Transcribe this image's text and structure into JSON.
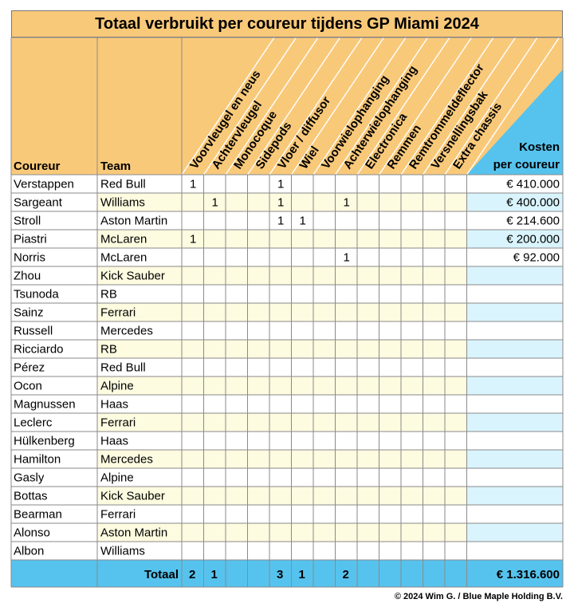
{
  "title": "Totaal verbruikt per coureur tijdens GP Miami 2024",
  "footer": "© 2024 Wim G. / Blue Maple Holding B.V.",
  "colors": {
    "header_orange": "#f9c97a",
    "row_yellow": "#fdfbe0",
    "cost_blue": "#56c3ee",
    "cost_light": "#d9f4fc",
    "grid": "#8a8a8a"
  },
  "chart_data": {
    "type": "table",
    "columns": {
      "driver": "Coureur",
      "team": "Team",
      "parts": [
        "Voorvleugel en neus",
        "Achtervleugel",
        "Monocoque",
        "Sidepods",
        "Vloer / diffusor",
        "Wiel",
        "Voorwielophanging",
        "Achterwielophanging",
        "Electronica",
        "Remmen",
        "Remtrommeldeflector",
        "Versnellingsbak",
        "Extra chassis"
      ],
      "cost_line1": "Kosten",
      "cost_line2": "per coureur"
    },
    "rows": [
      {
        "driver": "Verstappen",
        "team": "Red Bull",
        "parts": [
          "1",
          "",
          "",
          "",
          "1",
          "",
          "",
          "",
          "",
          "",
          "",
          "",
          ""
        ],
        "cost": "€ 410.000"
      },
      {
        "driver": "Sargeant",
        "team": "Williams",
        "parts": [
          "",
          "1",
          "",
          "",
          "1",
          "",
          "",
          "1",
          "",
          "",
          "",
          "",
          ""
        ],
        "cost": "€ 400.000"
      },
      {
        "driver": "Stroll",
        "team": "Aston Martin",
        "parts": [
          "",
          "",
          "",
          "",
          "1",
          "1",
          "",
          "",
          "",
          "",
          "",
          "",
          ""
        ],
        "cost": "€ 214.600"
      },
      {
        "driver": "Piastri",
        "team": "McLaren",
        "parts": [
          "1",
          "",
          "",
          "",
          "",
          "",
          "",
          "",
          "",
          "",
          "",
          "",
          ""
        ],
        "cost": "€ 200.000"
      },
      {
        "driver": "Norris",
        "team": "McLaren",
        "parts": [
          "",
          "",
          "",
          "",
          "",
          "",
          "",
          "1",
          "",
          "",
          "",
          "",
          ""
        ],
        "cost": "€ 92.000"
      },
      {
        "driver": "Zhou",
        "team": "Kick Sauber",
        "parts": [
          "",
          "",
          "",
          "",
          "",
          "",
          "",
          "",
          "",
          "",
          "",
          "",
          ""
        ],
        "cost": ""
      },
      {
        "driver": "Tsunoda",
        "team": "RB",
        "parts": [
          "",
          "",
          "",
          "",
          "",
          "",
          "",
          "",
          "",
          "",
          "",
          "",
          ""
        ],
        "cost": ""
      },
      {
        "driver": "Sainz",
        "team": "Ferrari",
        "parts": [
          "",
          "",
          "",
          "",
          "",
          "",
          "",
          "",
          "",
          "",
          "",
          "",
          ""
        ],
        "cost": ""
      },
      {
        "driver": "Russell",
        "team": "Mercedes",
        "parts": [
          "",
          "",
          "",
          "",
          "",
          "",
          "",
          "",
          "",
          "",
          "",
          "",
          ""
        ],
        "cost": ""
      },
      {
        "driver": "Ricciardo",
        "team": "RB",
        "parts": [
          "",
          "",
          "",
          "",
          "",
          "",
          "",
          "",
          "",
          "",
          "",
          "",
          ""
        ],
        "cost": ""
      },
      {
        "driver": "Pérez",
        "team": "Red Bull",
        "parts": [
          "",
          "",
          "",
          "",
          "",
          "",
          "",
          "",
          "",
          "",
          "",
          "",
          ""
        ],
        "cost": ""
      },
      {
        "driver": "Ocon",
        "team": "Alpine",
        "parts": [
          "",
          "",
          "",
          "",
          "",
          "",
          "",
          "",
          "",
          "",
          "",
          "",
          ""
        ],
        "cost": ""
      },
      {
        "driver": "Magnussen",
        "team": "Haas",
        "parts": [
          "",
          "",
          "",
          "",
          "",
          "",
          "",
          "",
          "",
          "",
          "",
          "",
          ""
        ],
        "cost": ""
      },
      {
        "driver": "Leclerc",
        "team": "Ferrari",
        "parts": [
          "",
          "",
          "",
          "",
          "",
          "",
          "",
          "",
          "",
          "",
          "",
          "",
          ""
        ],
        "cost": ""
      },
      {
        "driver": "Hülkenberg",
        "team": "Haas",
        "parts": [
          "",
          "",
          "",
          "",
          "",
          "",
          "",
          "",
          "",
          "",
          "",
          "",
          ""
        ],
        "cost": ""
      },
      {
        "driver": "Hamilton",
        "team": "Mercedes",
        "parts": [
          "",
          "",
          "",
          "",
          "",
          "",
          "",
          "",
          "",
          "",
          "",
          "",
          ""
        ],
        "cost": ""
      },
      {
        "driver": "Gasly",
        "team": "Alpine",
        "parts": [
          "",
          "",
          "",
          "",
          "",
          "",
          "",
          "",
          "",
          "",
          "",
          "",
          ""
        ],
        "cost": ""
      },
      {
        "driver": "Bottas",
        "team": "Kick Sauber",
        "parts": [
          "",
          "",
          "",
          "",
          "",
          "",
          "",
          "",
          "",
          "",
          "",
          "",
          ""
        ],
        "cost": ""
      },
      {
        "driver": "Bearman",
        "team": "Ferrari",
        "parts": [
          "",
          "",
          "",
          "",
          "",
          "",
          "",
          "",
          "",
          "",
          "",
          "",
          ""
        ],
        "cost": ""
      },
      {
        "driver": "Alonso",
        "team": "Aston Martin",
        "parts": [
          "",
          "",
          "",
          "",
          "",
          "",
          "",
          "",
          "",
          "",
          "",
          "",
          ""
        ],
        "cost": ""
      },
      {
        "driver": "Albon",
        "team": "Williams",
        "parts": [
          "",
          "",
          "",
          "",
          "",
          "",
          "",
          "",
          "",
          "",
          "",
          "",
          ""
        ],
        "cost": ""
      }
    ],
    "totals": {
      "label": "Totaal",
      "parts": [
        "2",
        "1",
        "",
        "",
        "3",
        "1",
        "",
        "2",
        "",
        "",
        "",
        "",
        ""
      ],
      "cost": "€ 1.316.600"
    }
  }
}
